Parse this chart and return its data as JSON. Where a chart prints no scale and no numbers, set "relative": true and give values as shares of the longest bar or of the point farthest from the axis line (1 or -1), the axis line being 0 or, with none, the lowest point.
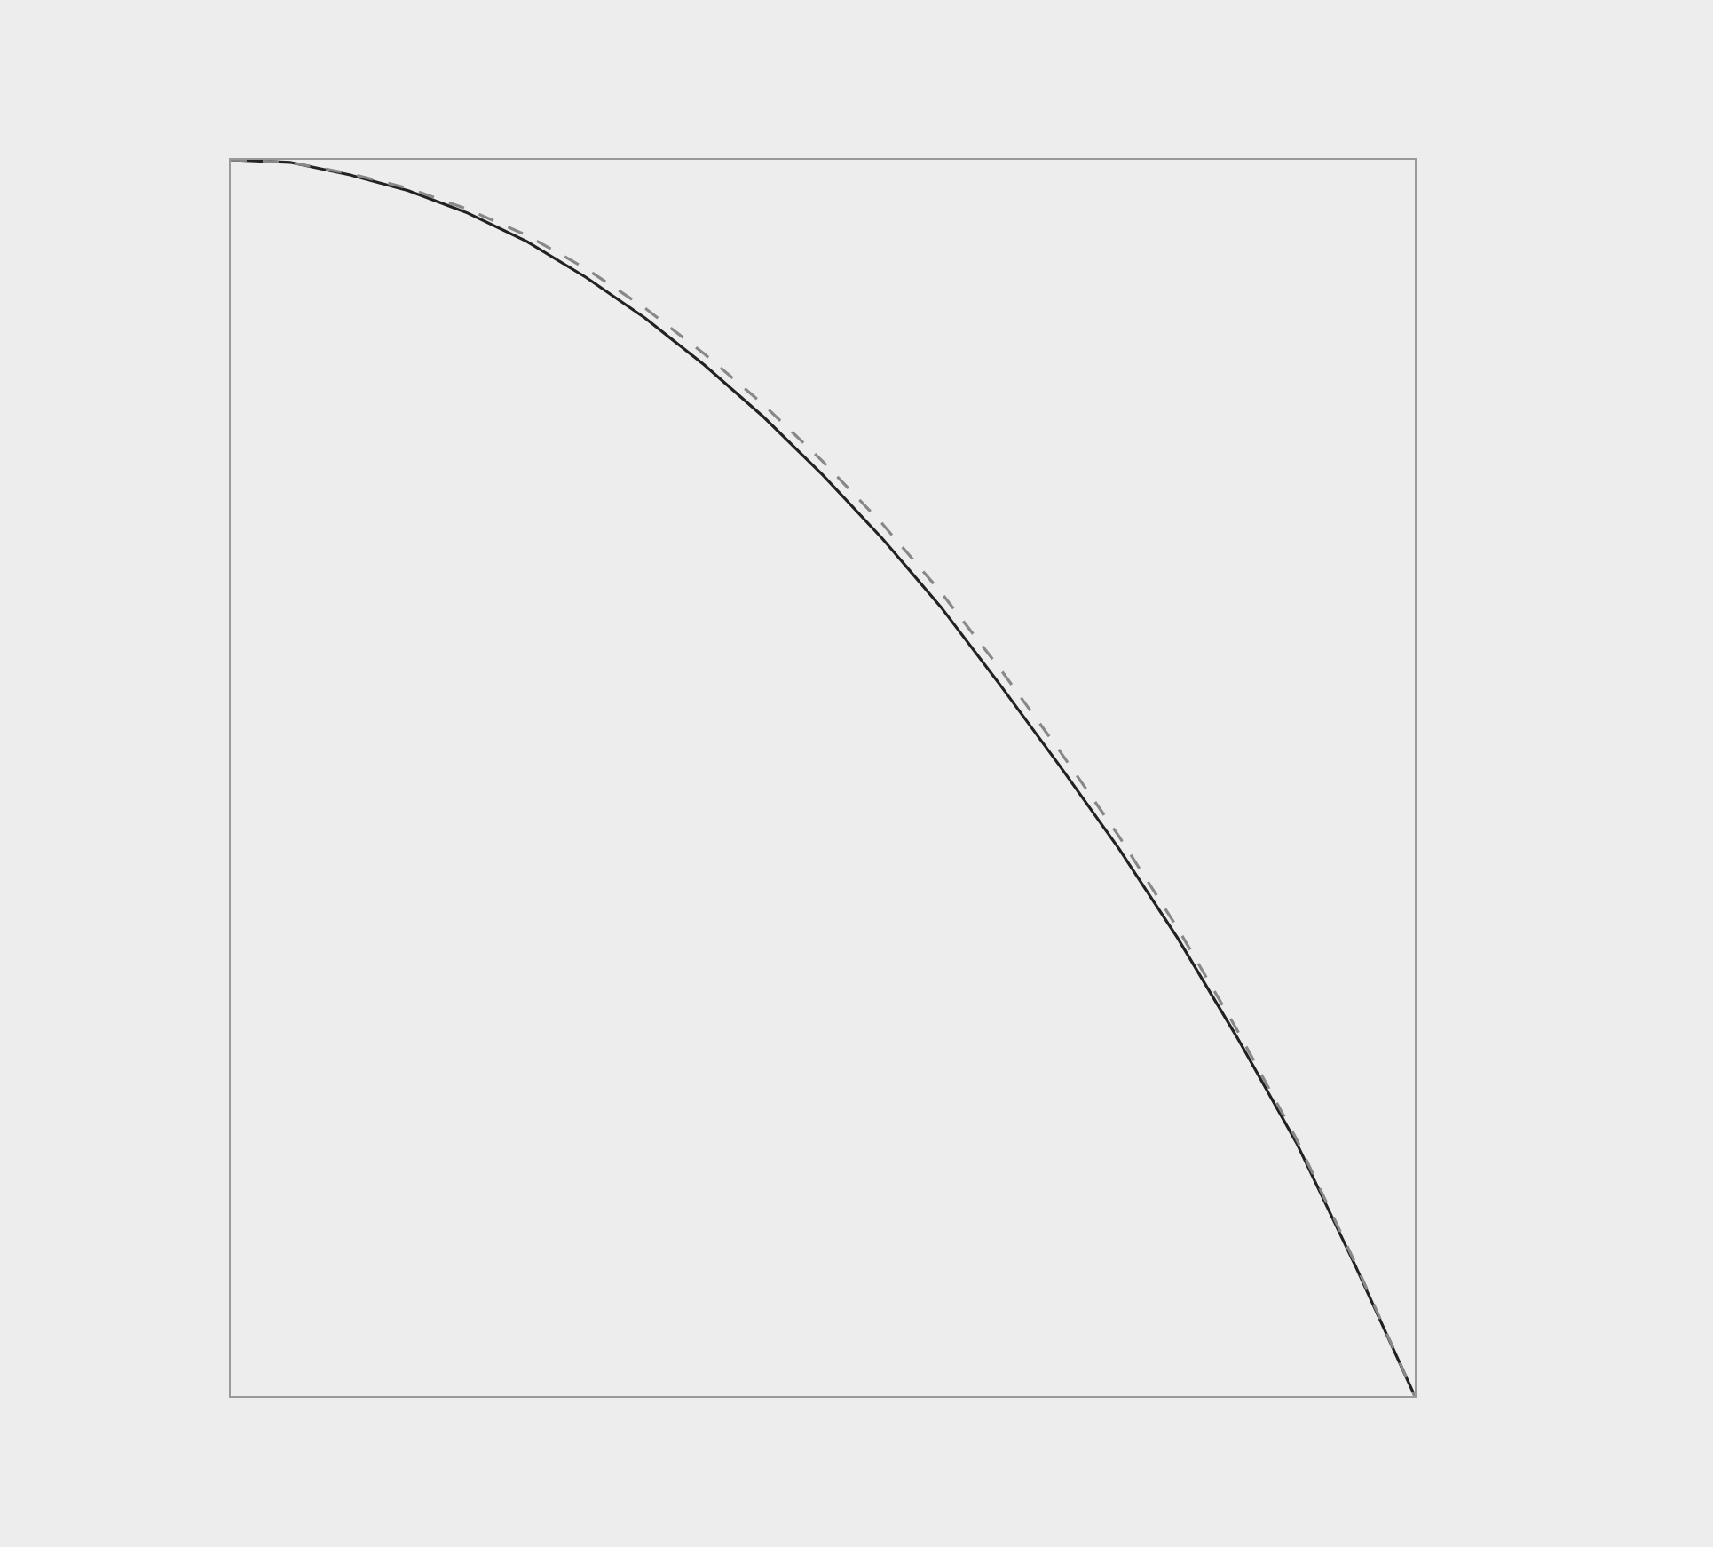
{
  "chart_data": {
    "type": "line",
    "relative": true,
    "categories": [
      null,
      null,
      null,
      null,
      null,
      null,
      null,
      null,
      null,
      null,
      null,
      null,
      null,
      null,
      null,
      null,
      null,
      null,
      null,
      null,
      null
    ],
    "series": [
      {
        "color": "#222222",
        "line_style": "solid",
        "values": [
          1,
          0.998,
          0.988,
          0.975,
          0.957,
          0.934,
          0.905,
          0.872,
          0.834,
          0.792,
          0.745,
          0.694,
          0.638,
          0.575,
          0.51,
          0.443,
          0.37,
          0.29,
          0.205,
          0.105,
          0
        ]
      },
      {
        "color": "#888888",
        "line_style": "dashed",
        "values": [
          1,
          0.998,
          0.989,
          0.977,
          0.96,
          0.939,
          0.912,
          0.88,
          0.843,
          0.802,
          0.756,
          0.706,
          0.65,
          0.588,
          0.522,
          0.453,
          0.378,
          0.296,
          0.208,
          0.107,
          0
        ]
      }
    ],
    "marker": "none"
  }
}
